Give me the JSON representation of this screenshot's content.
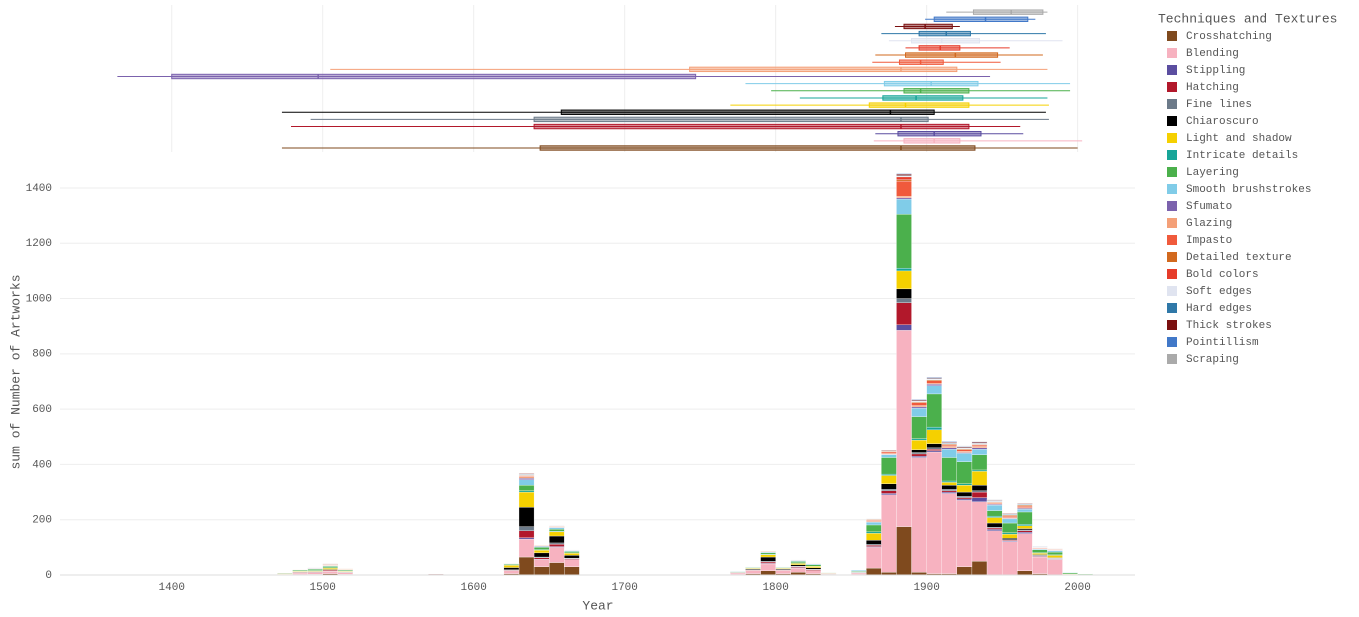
{
  "chart_data": [
    {
      "type": "bar",
      "barmode": "stack",
      "xlabel": "Year",
      "ylabel": "sum of Number of Artworks",
      "legend_title": "Techniques and Textures",
      "legend": "right",
      "xlim": [
        1326,
        2038
      ],
      "ylim": [
        0,
        1465
      ],
      "xticks": [
        1400,
        1500,
        1600,
        1700,
        1800,
        1900,
        2000
      ],
      "yticks": [
        0,
        200,
        400,
        600,
        800,
        1000,
        1200,
        1400
      ],
      "grid": true,
      "x": [
        1470,
        1480,
        1490,
        1500,
        1510,
        1570,
        1620,
        1630,
        1640,
        1650,
        1660,
        1760,
        1770,
        1780,
        1790,
        1800,
        1810,
        1820,
        1830,
        1850,
        1860,
        1870,
        1880,
        1890,
        1900,
        1910,
        1920,
        1930,
        1940,
        1950,
        1960,
        1970,
        1980,
        1990,
        2000
      ],
      "series": [
        {
          "name": "Crosshatching",
          "color": "#7f4a1e",
          "values": [
            0,
            2,
            3,
            5,
            3,
            0,
            5,
            65,
            30,
            45,
            30,
            0,
            2,
            5,
            15,
            5,
            10,
            5,
            3,
            2,
            25,
            10,
            175,
            10,
            5,
            5,
            30,
            50,
            0,
            0,
            15,
            5,
            0,
            0,
            0
          ]
        },
        {
          "name": "Blending",
          "color": "#f7b2c0",
          "values": [
            2,
            5,
            5,
            8,
            5,
            0,
            10,
            65,
            25,
            55,
            25,
            2,
            5,
            10,
            25,
            10,
            15,
            10,
            2,
            5,
            75,
            280,
            710,
            415,
            440,
            290,
            240,
            215,
            160,
            120,
            135,
            60,
            55,
            3,
            2
          ]
        },
        {
          "name": "Stippling",
          "color": "#5b4ea0",
          "values": [
            0,
            0,
            1,
            1,
            0,
            0,
            0,
            5,
            2,
            3,
            1,
            0,
            0,
            1,
            2,
            1,
            2,
            1,
            0,
            0,
            3,
            5,
            20,
            5,
            5,
            5,
            5,
            15,
            5,
            3,
            5,
            2,
            2,
            0,
            0
          ]
        },
        {
          "name": "Hatching",
          "color": "#b2182b",
          "values": [
            1,
            2,
            2,
            3,
            1,
            0,
            2,
            25,
            5,
            8,
            3,
            0,
            1,
            2,
            5,
            2,
            3,
            3,
            1,
            1,
            5,
            10,
            80,
            8,
            5,
            5,
            5,
            20,
            5,
            3,
            5,
            2,
            2,
            0,
            0
          ]
        },
        {
          "name": "Fine lines",
          "color": "#6c7a89",
          "values": [
            0,
            1,
            1,
            1,
            1,
            0,
            2,
            15,
            3,
            5,
            2,
            0,
            0,
            1,
            3,
            1,
            2,
            2,
            0,
            0,
            3,
            5,
            15,
            5,
            5,
            5,
            5,
            5,
            3,
            2,
            3,
            2,
            2,
            0,
            0
          ]
        },
        {
          "name": "Chiaroscuro",
          "color": "#000000",
          "values": [
            0,
            1,
            1,
            2,
            1,
            0,
            8,
            70,
            15,
            25,
            10,
            0,
            1,
            3,
            15,
            3,
            5,
            5,
            0,
            1,
            15,
            20,
            35,
            10,
            15,
            15,
            15,
            20,
            15,
            5,
            5,
            3,
            2,
            0,
            0
          ]
        },
        {
          "name": "Light and shadow",
          "color": "#f5d000",
          "values": [
            1,
            2,
            2,
            5,
            2,
            0,
            8,
            55,
            10,
            15,
            8,
            0,
            1,
            3,
            8,
            3,
            5,
            5,
            1,
            1,
            25,
            30,
            65,
            35,
            50,
            10,
            25,
            50,
            20,
            15,
            10,
            5,
            8,
            1,
            0
          ]
        },
        {
          "name": "Intricate details",
          "color": "#17a598",
          "values": [
            0,
            1,
            1,
            1,
            1,
            0,
            1,
            5,
            2,
            2,
            1,
            0,
            0,
            1,
            2,
            1,
            2,
            1,
            0,
            1,
            5,
            5,
            10,
            5,
            10,
            5,
            5,
            5,
            5,
            5,
            5,
            2,
            2,
            0,
            0
          ]
        },
        {
          "name": "Layering",
          "color": "#4bb04c",
          "values": [
            2,
            3,
            5,
            5,
            3,
            0,
            3,
            20,
            8,
            8,
            5,
            1,
            2,
            2,
            5,
            2,
            5,
            5,
            1,
            3,
            25,
            60,
            195,
            80,
            120,
            85,
            80,
            55,
            20,
            35,
            45,
            10,
            10,
            4,
            2
          ]
        },
        {
          "name": "Smooth brushstrokes",
          "color": "#80cce8",
          "values": [
            0,
            1,
            2,
            2,
            1,
            0,
            2,
            20,
            3,
            5,
            3,
            0,
            1,
            1,
            3,
            1,
            3,
            3,
            0,
            3,
            10,
            10,
            55,
            30,
            30,
            30,
            30,
            20,
            20,
            15,
            10,
            3,
            5,
            1,
            1
          ]
        },
        {
          "name": "Sfumato",
          "color": "#7b62ad",
          "values": [
            0,
            0,
            1,
            1,
            1,
            0,
            0,
            5,
            2,
            2,
            1,
            0,
            0,
            0,
            1,
            0,
            1,
            1,
            0,
            0,
            2,
            2,
            5,
            5,
            5,
            5,
            3,
            5,
            3,
            2,
            3,
            1,
            1,
            0,
            0
          ]
        },
        {
          "name": "Glazing",
          "color": "#f4a078",
          "values": [
            1,
            1,
            1,
            2,
            1,
            0,
            1,
            5,
            2,
            2,
            1,
            0,
            0,
            1,
            2,
            1,
            1,
            1,
            0,
            0,
            3,
            3,
            5,
            5,
            3,
            5,
            5,
            5,
            3,
            3,
            3,
            1,
            1,
            0,
            0
          ]
        },
        {
          "name": "Impasto",
          "color": "#f05a3c",
          "values": [
            0,
            0,
            1,
            1,
            1,
            0,
            0,
            3,
            0,
            1,
            0,
            0,
            0,
            0,
            0,
            0,
            0,
            0,
            0,
            0,
            3,
            5,
            55,
            10,
            10,
            5,
            5,
            5,
            3,
            5,
            5,
            2,
            2,
            0,
            0
          ]
        },
        {
          "name": "Detailed texture",
          "color": "#d2691e",
          "values": [
            0,
            0,
            0,
            1,
            1,
            0,
            0,
            2,
            0,
            1,
            0,
            0,
            0,
            0,
            1,
            0,
            0,
            1,
            0,
            0,
            2,
            2,
            5,
            3,
            3,
            3,
            3,
            2,
            2,
            3,
            3,
            1,
            1,
            0,
            0
          ]
        },
        {
          "name": "Bold colors",
          "color": "#e63c2a",
          "values": [
            0,
            0,
            0,
            0,
            0,
            0,
            0,
            0,
            0,
            0,
            0,
            0,
            0,
            0,
            0,
            0,
            0,
            0,
            0,
            0,
            0,
            0,
            10,
            0,
            0,
            0,
            0,
            0,
            0,
            0,
            0,
            0,
            0,
            0,
            0
          ]
        },
        {
          "name": "Soft edges",
          "color": "#e0e4f0",
          "values": [
            0,
            0,
            1,
            1,
            0,
            0,
            1,
            3,
            1,
            2,
            1,
            0,
            0,
            0,
            1,
            0,
            1,
            1,
            0,
            1,
            3,
            3,
            3,
            3,
            3,
            3,
            3,
            3,
            3,
            3,
            3,
            1,
            1,
            0,
            0
          ]
        },
        {
          "name": "Hard edges",
          "color": "#2f78a8",
          "values": [
            0,
            0,
            0,
            0,
            0,
            0,
            0,
            2,
            0,
            0,
            0,
            0,
            0,
            0,
            0,
            0,
            0,
            0,
            0,
            0,
            0,
            0,
            2,
            2,
            2,
            2,
            2,
            2,
            2,
            2,
            2,
            1,
            0,
            0,
            0
          ]
        },
        {
          "name": "Thick strokes",
          "color": "#7a1010",
          "values": [
            0,
            0,
            0,
            1,
            0,
            3,
            0,
            2,
            0,
            0,
            0,
            0,
            0,
            0,
            0,
            0,
            0,
            0,
            0,
            0,
            0,
            2,
            5,
            3,
            3,
            3,
            3,
            3,
            2,
            2,
            2,
            1,
            1,
            0,
            0
          ]
        },
        {
          "name": "Pointillism",
          "color": "#4178c8",
          "values": [
            0,
            0,
            0,
            0,
            0,
            0,
            0,
            0,
            0,
            0,
            0,
            0,
            0,
            0,
            0,
            0,
            0,
            0,
            0,
            0,
            0,
            0,
            2,
            2,
            2,
            2,
            2,
            2,
            1,
            1,
            1,
            1,
            0,
            0,
            0
          ]
        },
        {
          "name": "Scraping",
          "color": "#aaaaaa",
          "values": [
            0,
            0,
            0,
            0,
            0,
            0,
            0,
            0,
            0,
            0,
            0,
            0,
            0,
            0,
            0,
            0,
            0,
            0,
            0,
            0,
            0,
            0,
            0,
            0,
            0,
            0,
            1,
            1,
            1,
            0,
            0,
            1,
            0,
            0,
            0
          ]
        }
      ]
    },
    {
      "type": "box",
      "series": [
        {
          "values": [
            1473,
            1644,
            1883,
            1932,
            2000
          ]
        },
        {
          "values": [
            1865,
            1885,
            1905,
            1922,
            2003
          ]
        },
        {
          "values": [
            1866,
            1881,
            1905,
            1936,
            1964
          ]
        },
        {
          "values": [
            1479,
            1640,
            1883,
            1928,
            1962
          ]
        },
        {
          "values": [
            1492,
            1640,
            1883,
            1901,
            1981
          ]
        },
        {
          "values": [
            1473,
            1658,
            1876,
            1905,
            1979
          ]
        },
        {
          "values": [
            1770,
            1862,
            1886,
            1928,
            1981
          ]
        },
        {
          "values": [
            1816,
            1871,
            1893,
            1924,
            1980
          ]
        },
        {
          "values": [
            1797,
            1885,
            1896,
            1928,
            1995
          ]
        },
        {
          "values": [
            1780,
            1872,
            1903,
            1934,
            1995
          ]
        },
        {
          "values": [
            1364,
            1400,
            1497,
            1747,
            1942
          ]
        },
        {
          "values": [
            1505,
            1743,
            1883,
            1920,
            1980
          ]
        },
        {
          "values": [
            1864,
            1882,
            1896,
            1911,
            1949
          ]
        },
        {
          "values": [
            1866,
            1886,
            1919,
            1947,
            1977
          ]
        },
        {
          "values": [
            1886,
            1895,
            1909,
            1922,
            1955
          ]
        },
        {
          "values": [
            1875,
            1890,
            1910,
            1935,
            1990
          ]
        },
        {
          "values": [
            1870,
            1895,
            1913,
            1929,
            1979
          ]
        },
        {
          "values": [
            1879,
            1885,
            1899,
            1917,
            1922
          ]
        },
        {
          "values": [
            1899,
            1905,
            1939,
            1967,
            1972
          ]
        },
        {
          "values": [
            1913,
            1931,
            1956,
            1977,
            1980
          ]
        }
      ]
    }
  ]
}
